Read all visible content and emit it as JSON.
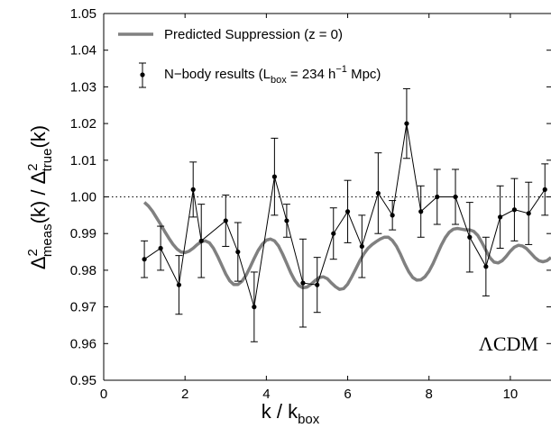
{
  "chart_data": {
    "type": "line",
    "title": "",
    "xlabel": "k / k",
    "xlabel_sub": "box",
    "ylabel": {
      "delta1": "Δ",
      "sup1": "2",
      "sub1": "meas",
      "mid": "(k) / Δ",
      "sup2": "2",
      "sub2": "true",
      "end": "(k)"
    },
    "xlim": [
      0,
      11
    ],
    "ylim": [
      0.95,
      1.05
    ],
    "xticks": [
      0,
      2,
      4,
      6,
      8,
      10
    ],
    "yticks": [
      0.95,
      0.96,
      0.97,
      0.98,
      0.99,
      1.0,
      1.01,
      1.02,
      1.03,
      1.04,
      1.05
    ],
    "reference_line": 1.0,
    "annotation": "ΛCDM",
    "legend": {
      "placement": "top-left",
      "entries": [
        {
          "label": "Predicted Suppression (z = 0)"
        },
        {
          "label_pre": "N−body results (L",
          "label_sub": "box",
          "label_mid": " = 234 h",
          "label_sup": "−1",
          "label_post": " Mpc)"
        }
      ]
    },
    "series": [
      {
        "name": "Predicted Suppression (z = 0)",
        "kind": "theory",
        "color": "#808080",
        "x": [
          1.0,
          1.1,
          1.2,
          1.3,
          1.4,
          1.5,
          1.6,
          1.7,
          1.8,
          1.9,
          2.0,
          2.1,
          2.2,
          2.3,
          2.4,
          2.5,
          2.6,
          2.7,
          2.8,
          2.9,
          3.0,
          3.1,
          3.2,
          3.3,
          3.4,
          3.5,
          3.6,
          3.7,
          3.8,
          3.9,
          4.0,
          4.1,
          4.2,
          4.3,
          4.4,
          4.5,
          4.6,
          4.7,
          4.8,
          4.9,
          5.0,
          5.1,
          5.2,
          5.3,
          5.4,
          5.5,
          5.6,
          5.7,
          5.8,
          5.9,
          6.0,
          6.1,
          6.2,
          6.3,
          6.4,
          6.5,
          6.6,
          6.7,
          6.8,
          6.9,
          7.0,
          7.1,
          7.2,
          7.3,
          7.4,
          7.5,
          7.6,
          7.7,
          7.8,
          7.9,
          8.0,
          8.1,
          8.2,
          8.3,
          8.4,
          8.5,
          8.6,
          8.7,
          8.8,
          8.9,
          9.0,
          9.1,
          9.2,
          9.3,
          9.4,
          9.5,
          9.6,
          9.7,
          9.8,
          9.9,
          10.0,
          10.1,
          10.2,
          10.3,
          10.4,
          10.5,
          10.6,
          10.7,
          10.8,
          10.9,
          11.0
        ],
        "y": [
          0.9985,
          0.9975,
          0.9961,
          0.9943,
          0.9925,
          0.9906,
          0.9888,
          0.9871,
          0.9858,
          0.985,
          0.9848,
          0.9852,
          0.986,
          0.987,
          0.9878,
          0.988,
          0.9875,
          0.986,
          0.9838,
          0.9814,
          0.979,
          0.9771,
          0.9761,
          0.9761,
          0.977,
          0.9786,
          0.9808,
          0.9832,
          0.9854,
          0.9871,
          0.9882,
          0.9885,
          0.988,
          0.9866,
          0.9844,
          0.9819,
          0.9793,
          0.9772,
          0.9758,
          0.9752,
          0.9754,
          0.9762,
          0.9772,
          0.978,
          0.9782,
          0.9777,
          0.9765,
          0.9755,
          0.9748,
          0.975,
          0.9762,
          0.9782,
          0.9804,
          0.9826,
          0.9845,
          0.986,
          0.987,
          0.9878,
          0.9885,
          0.989,
          0.989,
          0.9881,
          0.9865,
          0.9843,
          0.9818,
          0.9796,
          0.978,
          0.9773,
          0.9774,
          0.9782,
          0.9797,
          0.9818,
          0.9843,
          0.9868,
          0.9889,
          0.9904,
          0.9912,
          0.9914,
          0.9912,
          0.991,
          0.991,
          0.9906,
          0.9895,
          0.9876,
          0.9854,
          0.9834,
          0.9822,
          0.982,
          0.9826,
          0.9838,
          0.9852,
          0.9863,
          0.9868,
          0.9866,
          0.9859,
          0.9847,
          0.9835,
          0.9826,
          0.9823,
          0.9826,
          0.9835
        ]
      },
      {
        "name": "N−body results",
        "kind": "nbody",
        "color": "#000000",
        "x": [
          1.0,
          1.4,
          1.85,
          2.2,
          2.4,
          3.0,
          3.3,
          3.7,
          4.2,
          4.5,
          4.9,
          5.25,
          5.65,
          6.0,
          6.35,
          6.75,
          7.1,
          7.45,
          7.8,
          8.2,
          8.65,
          9.0,
          9.4,
          9.75,
          10.1,
          10.45,
          10.85
        ],
        "y": [
          0.983,
          0.986,
          0.976,
          1.002,
          0.988,
          0.9935,
          0.985,
          0.97,
          1.0055,
          0.9935,
          0.9765,
          0.976,
          0.99,
          0.996,
          0.9865,
          1.001,
          0.995,
          1.02,
          0.996,
          1.0,
          1.0,
          0.989,
          0.981,
          0.9945,
          0.9965,
          0.9955,
          1.002
        ],
        "err": [
          0.005,
          0.006,
          0.008,
          0.0075,
          0.01,
          0.007,
          0.008,
          0.0095,
          0.0105,
          0.0045,
          0.012,
          0.0075,
          0.007,
          0.0085,
          0.0085,
          0.011,
          0.004,
          0.0095,
          0.007,
          0.0075,
          0.0075,
          0.0095,
          0.008,
          0.0085,
          0.0085,
          0.0085,
          0.007
        ]
      }
    ]
  }
}
